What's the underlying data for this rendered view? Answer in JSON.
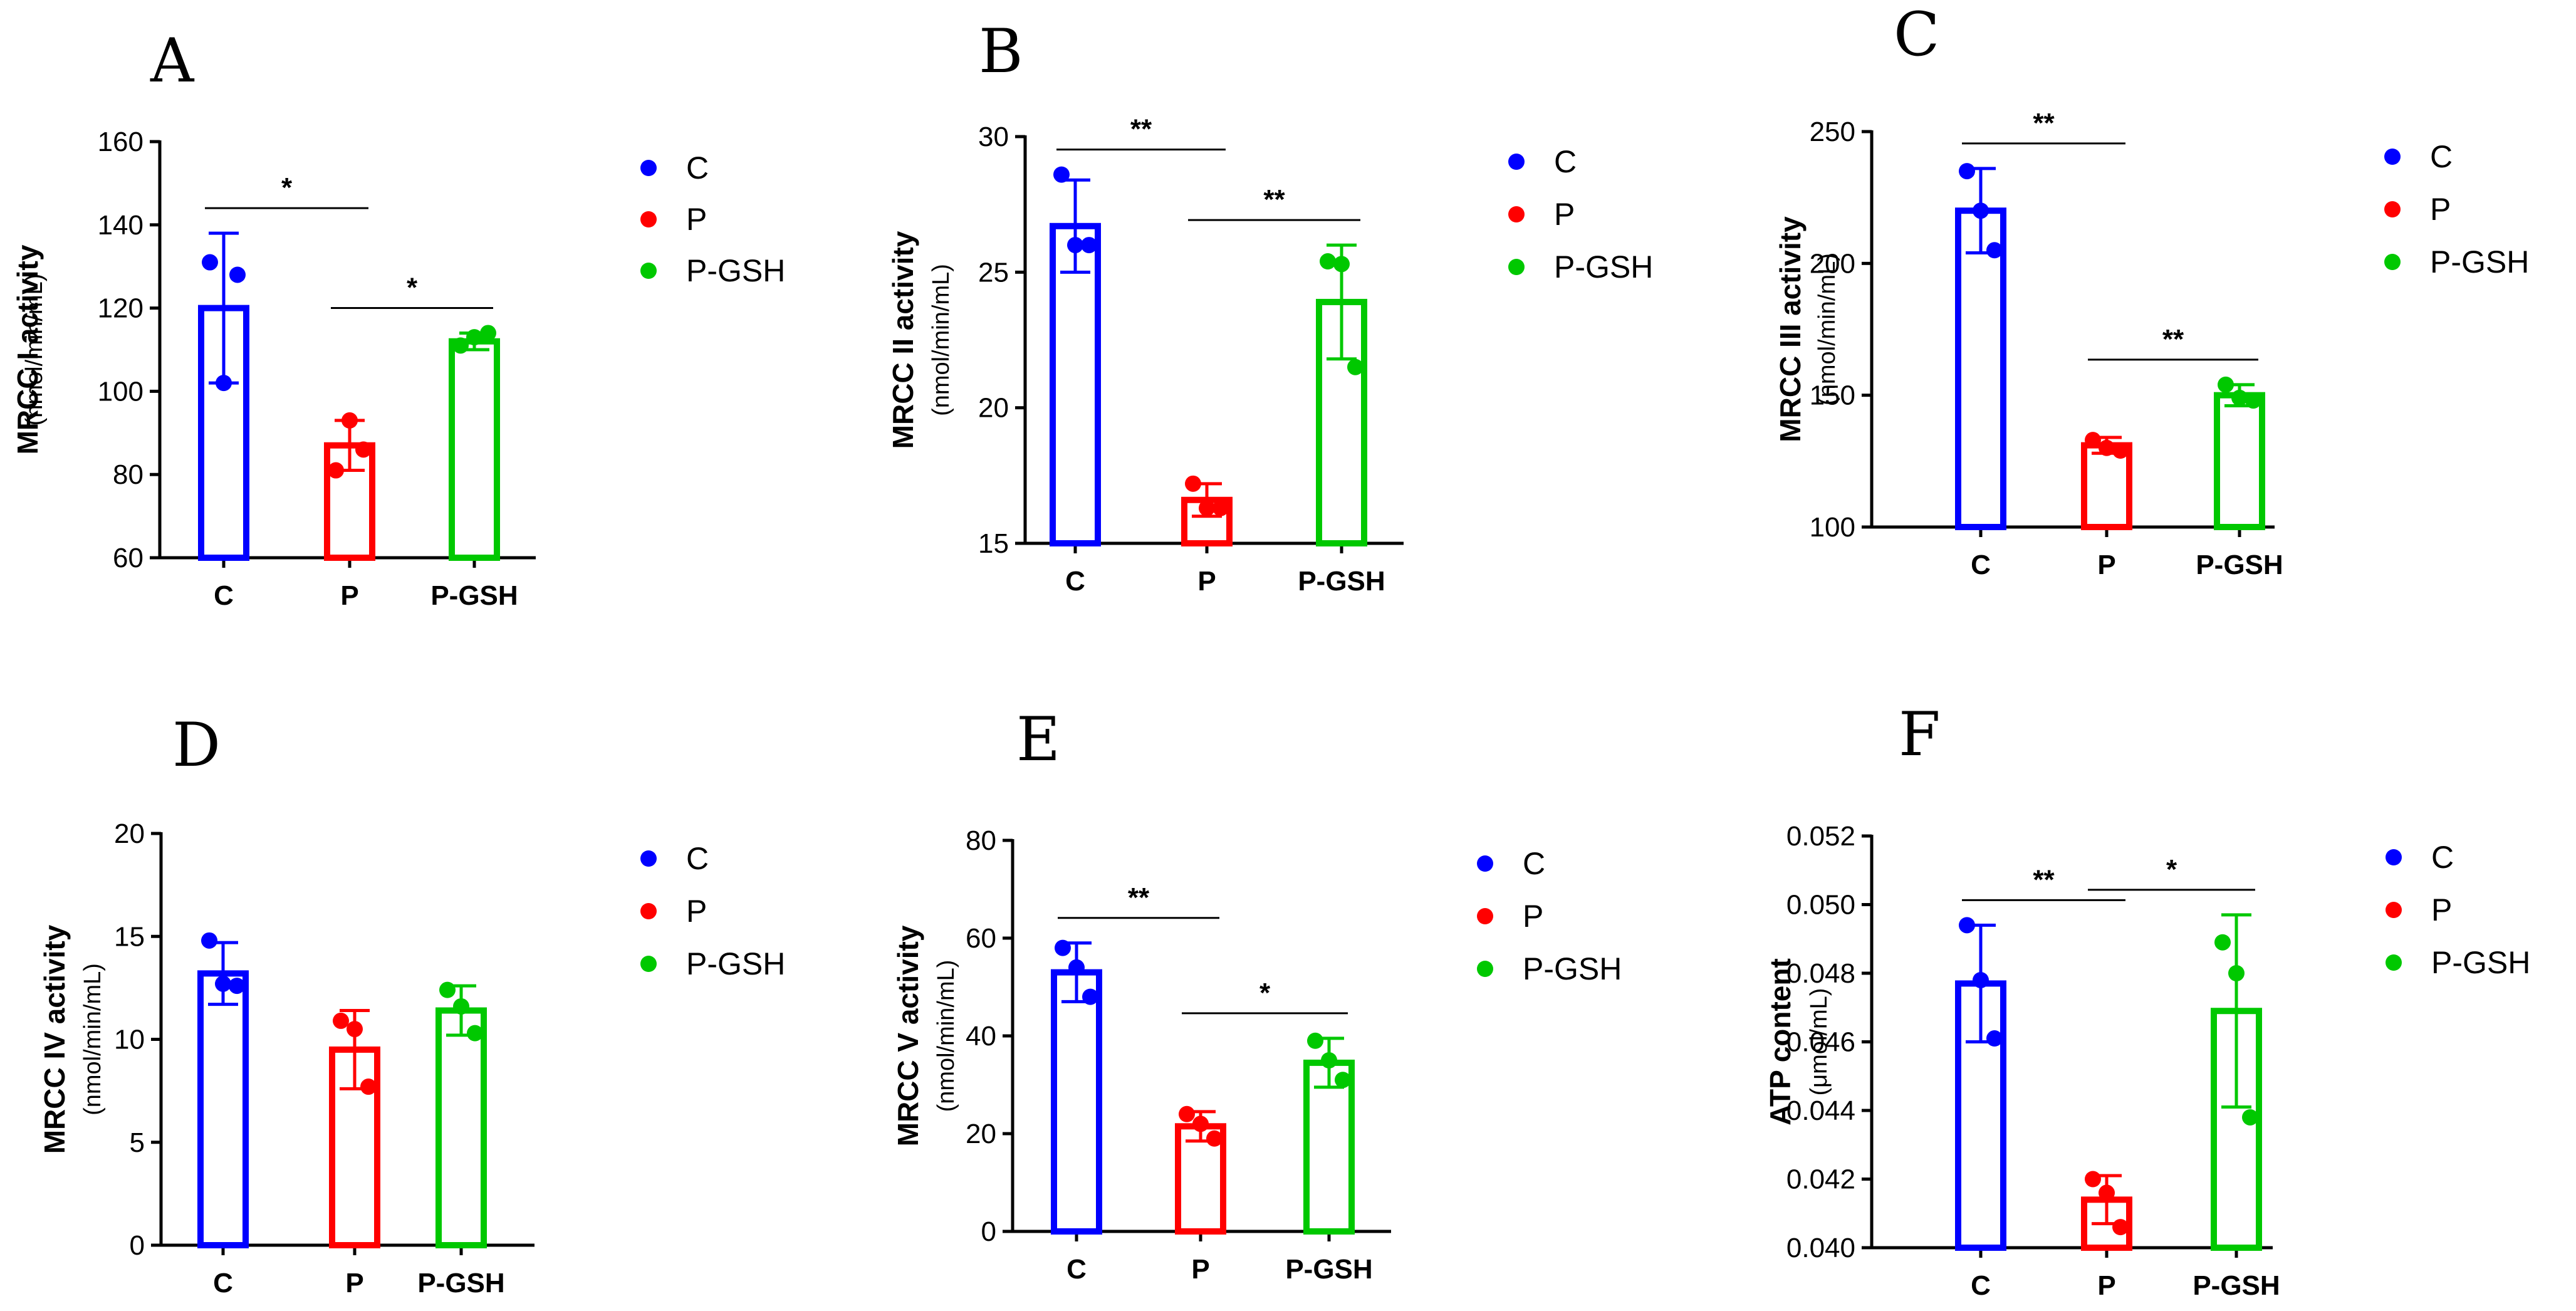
{
  "chart_data": [
    {
      "panel": "A",
      "type": "bar",
      "categories": [
        "C",
        "P",
        "P-GSH"
      ],
      "ylabel": "MRCC I activity",
      "yunit": "(nmol/min/mL)",
      "ylim": [
        60,
        160
      ],
      "yticks": [
        60,
        80,
        100,
        120,
        140,
        160
      ],
      "ytick_labels": [
        "60",
        "80",
        "100",
        "120",
        "140",
        "160"
      ],
      "means": [
        120,
        87,
        112
      ],
      "sd": [
        18,
        6,
        2
      ],
      "points": [
        [
          131,
          102,
          128
        ],
        [
          81,
          93,
          86
        ],
        [
          111,
          113,
          114
        ]
      ],
      "significance": [
        {
          "from": 0,
          "to": 1,
          "label": "*"
        },
        {
          "from": 1,
          "to": 2,
          "label": "*"
        }
      ],
      "legend": [
        "C",
        "P",
        "P-GSH"
      ]
    },
    {
      "panel": "B",
      "type": "bar",
      "categories": [
        "C",
        "P",
        "P-GSH"
      ],
      "ylabel": "MRCC II activity",
      "yunit": "(nmol/min/mL)",
      "ylim": [
        15,
        30
      ],
      "yticks": [
        15,
        20,
        25,
        30
      ],
      "ytick_labels": [
        "15",
        "20",
        "25",
        "30"
      ],
      "means": [
        26.7,
        16.6,
        23.9
      ],
      "sd": [
        1.7,
        0.6,
        2.1
      ],
      "points": [
        [
          28.6,
          26.0,
          26.0
        ],
        [
          17.2,
          16.3,
          16.3
        ],
        [
          25.4,
          25.3,
          21.5
        ]
      ],
      "significance": [
        {
          "from": 0,
          "to": 1,
          "label": "**"
        },
        {
          "from": 1,
          "to": 2,
          "label": "**"
        }
      ],
      "legend": [
        "C",
        "P",
        "P-GSH"
      ]
    },
    {
      "panel": "C",
      "type": "bar",
      "categories": [
        "C",
        "P",
        "P-GSH"
      ],
      "ylabel": "MRCC III activity",
      "yunit": "(nmol/min/mL)",
      "ylim": [
        100,
        250
      ],
      "yticks": [
        100,
        150,
        200,
        250
      ],
      "ytick_labels": [
        "100",
        "150",
        "200",
        "250"
      ],
      "means": [
        220,
        131,
        150
      ],
      "sd": [
        16,
        3,
        4
      ],
      "points": [
        [
          235,
          220,
          205
        ],
        [
          133,
          130,
          129
        ],
        [
          154,
          149,
          148
        ]
      ],
      "significance": [
        {
          "from": 0,
          "to": 1,
          "label": "**"
        },
        {
          "from": 1,
          "to": 2,
          "label": "**"
        }
      ],
      "legend": [
        "C",
        "P",
        "P-GSH"
      ]
    },
    {
      "panel": "D",
      "type": "bar",
      "categories": [
        "C",
        "P",
        "P-GSH"
      ],
      "ylabel": "MRCC IV activity",
      "yunit": "(nmol/min/mL)",
      "ylim": [
        0,
        20
      ],
      "yticks": [
        0,
        5,
        10,
        15,
        20
      ],
      "ytick_labels": [
        "0",
        "5",
        "10",
        "15",
        "20"
      ],
      "means": [
        13.2,
        9.5,
        11.4
      ],
      "sd": [
        1.5,
        1.9,
        1.2
      ],
      "points": [
        [
          14.8,
          12.7,
          12.6
        ],
        [
          10.9,
          10.5,
          7.7
        ],
        [
          12.4,
          11.6,
          10.3
        ]
      ],
      "significance": [],
      "legend": [
        "C",
        "P",
        "P-GSH"
      ]
    },
    {
      "panel": "E",
      "type": "bar",
      "categories": [
        "C",
        "P",
        "P-GSH"
      ],
      "ylabel": "MRCC V activity",
      "yunit": "(nmol/min/mL)",
      "ylim": [
        0,
        80
      ],
      "yticks": [
        0,
        20,
        40,
        60,
        80
      ],
      "ytick_labels": [
        "0",
        "20",
        "40",
        "60",
        "80"
      ],
      "means": [
        53,
        21.5,
        34.5
      ],
      "sd": [
        6,
        3,
        5
      ],
      "points": [
        [
          58,
          54,
          48
        ],
        [
          24,
          22,
          19
        ],
        [
          39,
          35,
          31
        ]
      ],
      "significance": [
        {
          "from": 0,
          "to": 1,
          "label": "**"
        },
        {
          "from": 1,
          "to": 2,
          "label": "*"
        }
      ],
      "legend": [
        "C",
        "P",
        "P-GSH"
      ]
    },
    {
      "panel": "F",
      "type": "bar",
      "categories": [
        "C",
        "P",
        "P-GSH"
      ],
      "ylabel": "ATP content",
      "yunit": "(μmol/mL)",
      "ylim": [
        0.04,
        0.052
      ],
      "yticks": [
        0.04,
        0.042,
        0.044,
        0.046,
        0.048,
        0.05,
        0.052
      ],
      "ytick_labels": [
        "0.040",
        "0.042",
        "0.044",
        "0.046",
        "0.048",
        "0.050",
        "0.052"
      ],
      "means": [
        0.0477,
        0.0414,
        0.0469
      ],
      "sd": [
        0.0017,
        0.0007,
        0.0028
      ],
      "points": [
        [
          0.0494,
          0.0478,
          0.0461
        ],
        [
          0.042,
          0.0416,
          0.0406
        ],
        [
          0.0489,
          0.048,
          0.0438
        ]
      ],
      "significance": [
        {
          "from": 0,
          "to": 1,
          "label": "**"
        },
        {
          "from": 1,
          "to": 2,
          "label": "*"
        }
      ],
      "legend": [
        "C",
        "P",
        "P-GSH"
      ]
    }
  ],
  "colors": {
    "C": "#0000ff",
    "P": "#ff0000",
    "P-GSH": "#00c800"
  }
}
